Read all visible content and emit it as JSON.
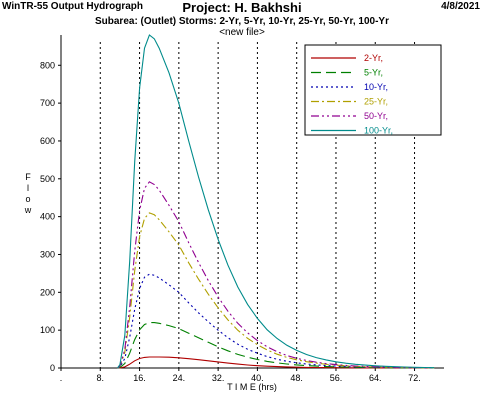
{
  "header": {
    "app_title": "WinTR-55 Output Hydrograph",
    "project_title": "Project: H. Bakhshi",
    "date": "4/8/2021",
    "subtitle": "Subarea: (Outlet)  Storms: 2-Yr, 5-Yr, 10-Yr, 25-Yr, 50-Yr, 100-Yr",
    "file_label": "<new file>"
  },
  "chart_data": {
    "type": "line",
    "xlabel": "T I M E  (hrs)",
    "ylabel": "F l o w",
    "xlim": [
      0,
      78
    ],
    "ylim": [
      0,
      880
    ],
    "x_ticks": [
      {
        "v": 0,
        "label": "."
      },
      {
        "v": 8,
        "label": "8."
      },
      {
        "v": 16,
        "label": "16."
      },
      {
        "v": 24,
        "label": "24."
      },
      {
        "v": 32,
        "label": "32."
      },
      {
        "v": 40,
        "label": "40."
      },
      {
        "v": 48,
        "label": "48."
      },
      {
        "v": 56,
        "label": "56."
      },
      {
        "v": 64,
        "label": "64."
      },
      {
        "v": 72,
        "label": "72."
      }
    ],
    "y_ticks": [
      {
        "v": 0,
        "label": "0"
      },
      {
        "v": 100,
        "label": "100"
      },
      {
        "v": 200,
        "label": "200"
      },
      {
        "v": 300,
        "label": "300"
      },
      {
        "v": 400,
        "label": "400"
      },
      {
        "v": 500,
        "label": "500"
      },
      {
        "v": 600,
        "label": "600"
      },
      {
        "v": 700,
        "label": "700"
      },
      {
        "v": 800,
        "label": "800"
      }
    ],
    "grid": "vertical dotted",
    "legend_position": "top-right",
    "x": [
      11.5,
      12,
      13,
      14,
      15,
      16,
      17,
      18,
      19,
      20,
      22,
      24,
      26,
      28,
      30,
      32,
      34,
      36,
      38,
      40,
      42,
      44,
      46,
      48,
      50,
      52,
      54,
      56,
      58,
      60,
      62,
      64,
      66,
      68,
      70,
      72,
      74,
      76
    ],
    "series": [
      {
        "name": "2-Yr,",
        "color": "#b00000",
        "dash": "",
        "values": [
          0,
          0.3,
          3,
          10,
          19,
          25,
          28,
          29,
          29,
          29,
          28.5,
          27,
          24.5,
          22,
          19,
          16,
          13,
          10.2,
          8,
          6.2,
          4.8,
          3.7,
          2.9,
          2.2,
          1.7,
          1.3,
          1,
          0.8,
          0.6,
          0.45,
          0.35,
          0.27,
          0.2,
          0.15,
          0.11,
          0.08,
          0.05,
          0.03
        ]
      },
      {
        "name": "5-Yr,",
        "color": "#008000",
        "dash": "10,5",
        "values": [
          0,
          1.2,
          12,
          39,
          75,
          101,
          115,
          120,
          120,
          118,
          112,
          104,
          92,
          80,
          68,
          56,
          45.5,
          36,
          28.5,
          22.5,
          17.5,
          13.5,
          10.5,
          8.2,
          6.3,
          4.9,
          3.8,
          3,
          2.3,
          1.8,
          1.4,
          1.1,
          0.8,
          0.6,
          0.45,
          0.33,
          0.23,
          0.15
        ]
      },
      {
        "name": "10-Yr,",
        "color": "#0000b0",
        "dash": "2,3",
        "values": [
          0,
          2.5,
          25,
          81,
          155,
          210,
          240,
          248,
          245,
          238,
          220,
          200,
          172,
          146,
          122,
          100,
          80,
          63,
          49.5,
          39,
          30,
          23,
          17.8,
          13.8,
          10.6,
          8.2,
          6.3,
          4.9,
          3.8,
          2.9,
          2.2,
          1.7,
          1.3,
          1,
          0.75,
          0.55,
          0.38,
          0.25
        ]
      },
      {
        "name": "25-Yr,",
        "color": "#b0a000",
        "dash": "8,3,2,3",
        "values": [
          0,
          4.1,
          41,
          134,
          257,
          347,
          395,
          410,
          405,
          392,
          360,
          325,
          278,
          235,
          195,
          159,
          127,
          100,
          78.5,
          61.5,
          47.5,
          36.5,
          28,
          21.7,
          16.7,
          12.9,
          9.9,
          7.7,
          5.9,
          4.6,
          3.5,
          2.7,
          2.1,
          1.6,
          1.2,
          0.9,
          0.62,
          0.4
        ]
      },
      {
        "name": "50-Yr,",
        "color": "#900090",
        "dash": "8,3,2,3,2,3",
        "values": [
          0,
          4.9,
          49,
          161,
          308,
          416,
          475,
          492,
          485,
          470,
          430,
          387,
          331,
          279,
          231,
          188,
          150,
          118,
          93,
          72.5,
          56,
          43,
          33,
          25.6,
          19.7,
          15.2,
          11.7,
          9.1,
          7,
          5.4,
          4.2,
          3.2,
          2.5,
          1.9,
          1.4,
          1.05,
          0.73,
          0.48
        ]
      },
      {
        "name": "100-Yr,",
        "color": "#008b8b",
        "dash": "",
        "values": [
          0,
          8.6,
          86,
          282,
          545,
          740,
          845,
          880,
          870,
          845,
          780,
          700,
          600,
          505,
          418,
          340,
          272,
          214,
          168,
          131,
          101,
          78,
          60,
          46.5,
          35.8,
          27.6,
          21.3,
          16.5,
          12.7,
          9.8,
          7.6,
          5.8,
          4.5,
          3.4,
          2.6,
          1.9,
          1.3,
          0.9
        ]
      }
    ]
  }
}
